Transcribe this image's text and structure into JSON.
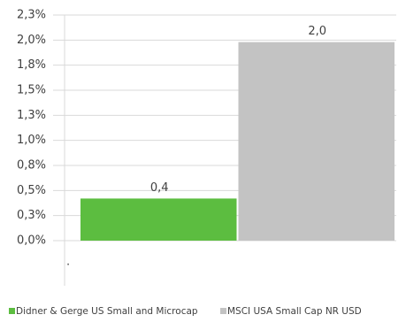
{
  "chart_data": {
    "type": "bar",
    "categories": [
      "."
    ],
    "series": [
      {
        "name": "Didner & Gerge US Small and Microcap",
        "color": "#5cbd40",
        "values": [
          0.42
        ],
        "value_labels": [
          "0,4"
        ]
      },
      {
        "name": "MSCI USA Small Cap NR USD",
        "color": "#c3c3c3",
        "values": [
          1.98
        ],
        "value_labels": [
          "2,0"
        ]
      }
    ],
    "ylim": [
      0,
      2.25
    ],
    "yticks": [
      {
        "value": 0,
        "label": "0,0%"
      },
      {
        "value": 0.25,
        "label": "0,3%"
      },
      {
        "value": 0.5,
        "label": "0,5%"
      },
      {
        "value": 0.75,
        "label": "0,8%"
      },
      {
        "value": 1,
        "label": "1,0%"
      },
      {
        "value": 1.25,
        "label": "1,3%"
      },
      {
        "value": 1.5,
        "label": "1,5%"
      },
      {
        "value": 1.75,
        "label": "1,8%"
      },
      {
        "value": 2,
        "label": "2,0%"
      },
      {
        "value": 2.25,
        "label": "2,3%"
      }
    ],
    "grid": true,
    "legend": "bottom"
  }
}
